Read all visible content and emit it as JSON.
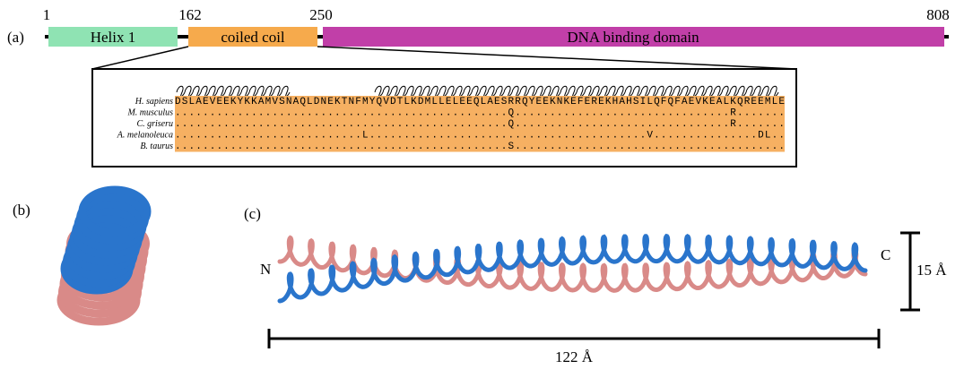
{
  "panel_a": {
    "label": "(a)",
    "positions": [
      "1",
      "162",
      "250",
      "808"
    ],
    "domains": [
      "Helix 1",
      "coiled coil",
      "DNA binding domain"
    ],
    "alignment": {
      "species": [
        "H. sapiens",
        "M. musculus",
        "C. griseru",
        "A. melanoleuca",
        "B. taurus"
      ],
      "sequences": [
        "DSLAEVEEKYKKAMVSNAQLDNEKTNFMYQVDTLKDMLLELEEQLAESRRQYEEKNKEFEREKHAHSILQFQFAEVKEALKQREEMLE",
        "................................................Q...............................R.......",
        "................................................Q...............................R.......",
        "...........................L........................................V...............DL..",
        "................................................S......................................."
      ]
    }
  },
  "panel_b": {
    "label": "(b)"
  },
  "panel_c": {
    "label": "(c)",
    "n_terminus": "N",
    "c_terminus": "C",
    "width": "15 Å",
    "length": "122 Å"
  }
}
